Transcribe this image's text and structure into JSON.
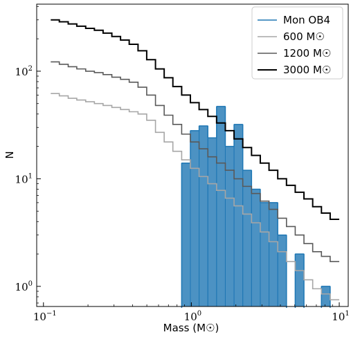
{
  "chart_data": {
    "type": "histogram-step",
    "title": "",
    "xlabel": "Mass",
    "xlabel_unit": "(M☉)",
    "ylabel": "N",
    "xscale": "log",
    "yscale": "log",
    "xlim": [
      0.09,
      11.5
    ],
    "ylim": [
      0.65,
      420
    ],
    "x_ticks": [
      {
        "value": 0.1,
        "base": "10",
        "exp": "−1"
      },
      {
        "value": 1,
        "base": "10",
        "exp": "0"
      },
      {
        "value": 10,
        "base": "10",
        "exp": "1"
      }
    ],
    "y_ticks": [
      {
        "value": 1,
        "base": "10",
        "exp": "0"
      },
      {
        "value": 10,
        "base": "10",
        "exp": "1"
      },
      {
        "value": 100,
        "base": "10",
        "exp": "2"
      }
    ],
    "grid": false,
    "legend_position": "top-right",
    "bin_edges": [
      0.112,
      0.128,
      0.147,
      0.168,
      0.193,
      0.221,
      0.253,
      0.29,
      0.332,
      0.38,
      0.436,
      0.499,
      0.572,
      0.655,
      0.75,
      0.86,
      0.985,
      1.128,
      1.293,
      1.481,
      1.697,
      1.944,
      2.227,
      2.552,
      2.924,
      3.35,
      3.838,
      4.397,
      5.038,
      5.772,
      6.613,
      7.577,
      8.681,
      10.0
    ],
    "observed": {
      "name": "Mon OB4",
      "color": "#1f77b4",
      "counts": [
        0,
        0,
        0,
        0,
        0,
        0,
        0,
        0,
        0,
        0,
        0,
        0,
        0,
        0,
        0,
        14,
        28,
        31,
        24,
        47,
        20,
        32,
        12,
        8,
        6,
        6,
        3,
        0,
        2,
        0,
        0,
        1,
        0
      ]
    },
    "series": [
      {
        "name": "600 M☉",
        "color": "#a6a6a6",
        "values": [
          62,
          59,
          56,
          54,
          52,
          50,
          48,
          46,
          44,
          42,
          40,
          35,
          27,
          22,
          18,
          15,
          12.5,
          10.5,
          9,
          7.8,
          6.6,
          5.6,
          4.7,
          3.9,
          3.2,
          2.6,
          2.1,
          1.7,
          1.4,
          1.15,
          0.95,
          0.85,
          0.75
        ]
      },
      {
        "name": "1200 M☉",
        "color": "#595959",
        "values": [
          122,
          116,
          110,
          105,
          100,
          97,
          93,
          88,
          84,
          79,
          71,
          60,
          48,
          39,
          32,
          26,
          22,
          19,
          16,
          14,
          12,
          10,
          8.5,
          7.3,
          6.2,
          5.2,
          4.3,
          3.6,
          3.0,
          2.5,
          2.1,
          1.9,
          1.7
        ]
      },
      {
        "name": "3000 M☉",
        "color": "#000000",
        "values": [
          300,
          288,
          275,
          262,
          250,
          240,
          226,
          210,
          195,
          178,
          155,
          128,
          105,
          87,
          72,
          60,
          51,
          44,
          38,
          33,
          28,
          23.5,
          19.5,
          16.5,
          14,
          12,
          10,
          8.7,
          7.5,
          6.5,
          5.5,
          4.8,
          4.2
        ]
      }
    ]
  }
}
